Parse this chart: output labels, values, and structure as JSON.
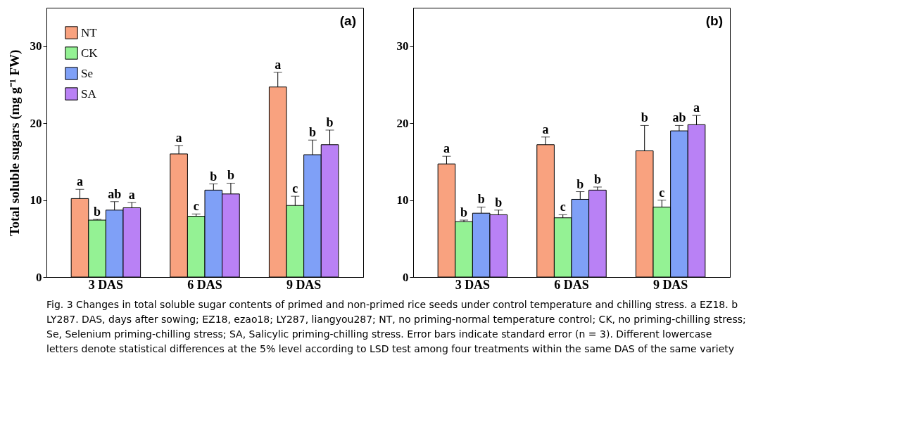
{
  "chart_data": [
    {
      "type": "bar",
      "title": "(a)",
      "ylabel": "Total soluble sugars (mg g⁻¹ FW)",
      "categories": [
        "3 DAS",
        "6 DAS",
        "9 DAS"
      ],
      "ylim": [
        0,
        35
      ],
      "yticks": [
        0,
        10,
        20,
        30
      ],
      "grid": false,
      "legend": "top left",
      "series": [
        {
          "name": "NT",
          "color": "#f9a27f",
          "values": [
            10.2,
            16.0,
            24.7
          ],
          "errors": [
            [
              10.2,
              11.4
            ],
            [
              16.0,
              17.1
            ],
            [
              24.7,
              26.6
            ]
          ],
          "value_labels": [
            "a",
            "a",
            "a"
          ]
        },
        {
          "name": "CK",
          "color": "#94f294",
          "values": [
            7.4,
            7.9,
            9.3
          ],
          "errors": [
            [
              7.4,
              7.5
            ],
            [
              7.9,
              8.2
            ],
            [
              9.3,
              10.5
            ]
          ],
          "value_labels": [
            "b",
            "c",
            "c"
          ]
        },
        {
          "name": "Se",
          "color": "#7fa0f7",
          "values": [
            8.7,
            11.3,
            15.9
          ],
          "errors": [
            [
              8.7,
              9.8
            ],
            [
              11.3,
              12.1
            ],
            [
              15.9,
              17.8
            ]
          ],
          "value_labels": [
            "ab",
            "b",
            "b"
          ]
        },
        {
          "name": "SA",
          "color": "#b981f5",
          "values": [
            9.0,
            10.8,
            17.2
          ],
          "errors": [
            [
              9.0,
              9.7
            ],
            [
              10.8,
              12.2
            ],
            [
              17.2,
              19.1
            ]
          ],
          "value_labels": [
            "a",
            "b",
            "b"
          ]
        }
      ]
    },
    {
      "type": "bar",
      "title": "(b)",
      "categories": [
        "3 DAS",
        "6 DAS",
        "9 DAS"
      ],
      "ylim": [
        0,
        35
      ],
      "yticks": [
        0,
        10,
        20,
        30
      ],
      "grid": false,
      "legend": false,
      "series": [
        {
          "color": "#f9a27f",
          "values": [
            14.7,
            17.2,
            16.4
          ],
          "errors": [
            [
              14.7,
              15.7
            ],
            [
              17.2,
              18.2
            ],
            [
              16.4,
              19.7
            ]
          ],
          "value_labels": [
            "a",
            "a",
            "b"
          ]
        },
        {
          "color": "#94f294",
          "values": [
            7.2,
            7.7,
            9.1
          ],
          "errors": [
            [
              7.2,
              7.4
            ],
            [
              7.7,
              8.1
            ],
            [
              9.1,
              10.0
            ]
          ],
          "value_labels": [
            "b",
            "c",
            "c"
          ]
        },
        {
          "color": "#7fa0f7",
          "values": [
            8.3,
            10.1,
            19.0
          ],
          "errors": [
            [
              8.3,
              9.1
            ],
            [
              10.1,
              11.1
            ],
            [
              19.0,
              19.7
            ]
          ],
          "value_labels": [
            "b",
            "b",
            "ab"
          ]
        },
        {
          "color": "#b981f5",
          "values": [
            8.1,
            11.3,
            19.8
          ],
          "errors": [
            [
              8.1,
              8.7
            ],
            [
              11.3,
              11.7
            ],
            [
              19.8,
              21.0
            ]
          ],
          "value_labels": [
            "b",
            "b",
            "a"
          ]
        }
      ],
      "annotations": [
        "Fig. 3  Changes in total soluble sugar contents of primed and non-primed rice seeds under control temperature and chilling stress. a EZ18. b LY287. DAS, days after sowing; EZ18, ezao18; LY287, liangyou287; NT, no priming-normal temperature control; CK, no priming-chilling stress; Se, Selenium priming-chilling stress; SA, Salicylic priming-chilling stress. Error bars indicate standard error (n = 3). Different lowercase letters denote statistical differences at the 5% level according to LSD test among four treatments within the same DAS of the same variety"
      ]
    }
  ]
}
